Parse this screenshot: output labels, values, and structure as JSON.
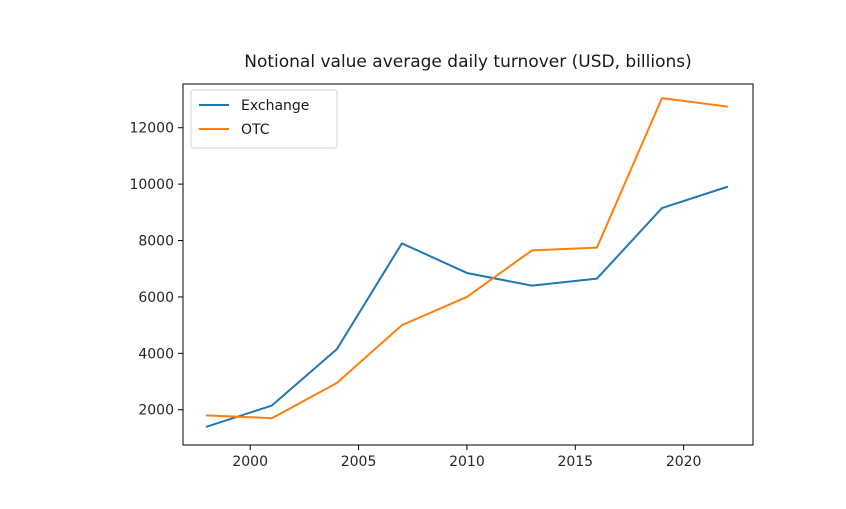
{
  "chart_data": {
    "type": "line",
    "title": "Notional value average daily turnover (USD, billions)",
    "xlabel": "",
    "ylabel": "",
    "xlim": [
      1996.9,
      2023.2
    ],
    "ylim": [
      750,
      13550
    ],
    "x_ticks": [
      2000,
      2005,
      2010,
      2015,
      2020
    ],
    "y_ticks": [
      2000,
      4000,
      6000,
      8000,
      10000,
      12000
    ],
    "grid": false,
    "legend_position": "upper-left",
    "x": [
      1998,
      2001,
      2004,
      2007,
      2010,
      2013,
      2016,
      2019,
      2022
    ],
    "series": [
      {
        "name": "Exchange",
        "color": "#1f77b4",
        "values": [
          1400,
          2150,
          4150,
          7900,
          6850,
          6400,
          6650,
          9150,
          9900
        ]
      },
      {
        "name": "OTC",
        "color": "#ff7f0e",
        "values": [
          1800,
          1700,
          2950,
          5000,
          6000,
          7650,
          7750,
          13050,
          12750
        ]
      }
    ]
  }
}
